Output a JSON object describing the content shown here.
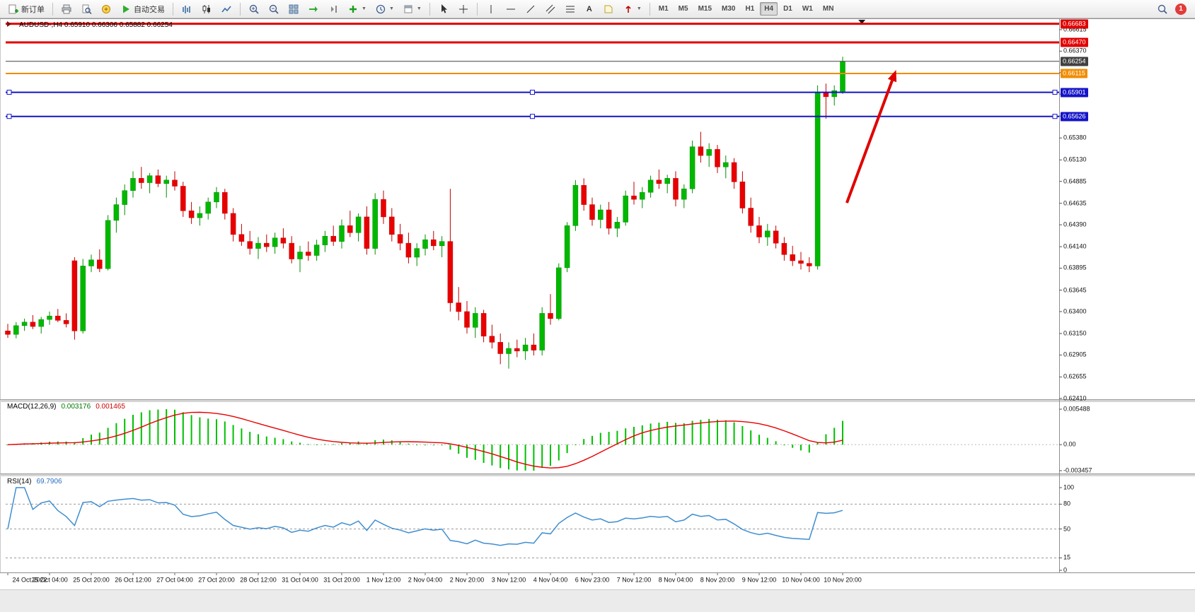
{
  "toolbar": {
    "new_order_label": "新订单",
    "auto_trading_label": "自动交易",
    "timeframes": [
      "M1",
      "M5",
      "M15",
      "M30",
      "H1",
      "H4",
      "D1",
      "W1",
      "MN"
    ],
    "active_timeframe": "H4",
    "notification_count": "1"
  },
  "chart": {
    "title": "AUDUSD-,H4 0.65910 0.66306 0.65882 0.66254"
  },
  "chart_data": {
    "type": "candlestick",
    "symbol": "AUDUSD-",
    "timeframe": "H4",
    "last_bar": {
      "open": "0.65910",
      "high": "0.66306",
      "low": "0.65882",
      "close": "0.66254"
    },
    "y_axis_ticks": [
      "0.66615",
      "0.66370",
      "0.66125",
      "0.65880",
      "0.65630",
      "0.65380",
      "0.65130",
      "0.64885",
      "0.64635",
      "0.64390",
      "0.64140",
      "0.63895",
      "0.63645",
      "0.63400",
      "0.63150",
      "0.62905",
      "0.62655",
      "0.62410"
    ],
    "x_labels": [
      "24 Oct 2022",
      "25 Oct 04:00",
      "25 Oct 20:00",
      "26 Oct 12:00",
      "27 Oct 04:00",
      "27 Oct 20:00",
      "28 Oct 12:00",
      "31 Oct 04:00",
      "31 Oct 20:00",
      "1 Nov 12:00",
      "2 Nov 04:00",
      "2 Nov 20:00",
      "3 Nov 12:00",
      "4 Nov 04:00",
      "6 Nov 23:00",
      "7 Nov 12:00",
      "8 Nov 04:00",
      "8 Nov 20:00",
      "9 Nov 12:00",
      "10 Nov 04:00",
      "10 Nov 20:00"
    ],
    "bars_per_label": 5,
    "candles": [
      [
        0.6318,
        0.6326,
        0.631,
        0.6314
      ],
      [
        0.6314,
        0.6328,
        0.63095,
        0.6324
      ],
      [
        0.6324,
        0.6332,
        0.6318,
        0.6328
      ],
      [
        0.6328,
        0.6336,
        0.632,
        0.6323
      ],
      [
        0.6323,
        0.6334,
        0.6315,
        0.6331
      ],
      [
        0.6331,
        0.634,
        0.6325,
        0.6335
      ],
      [
        0.6335,
        0.6343,
        0.6328,
        0.633
      ],
      [
        0.633,
        0.6338,
        0.6322,
        0.6326
      ],
      [
        0.6398,
        0.6402,
        0.6308,
        0.6318
      ],
      [
        0.6318,
        0.64,
        0.6315,
        0.6392
      ],
      [
        0.6392,
        0.6405,
        0.6385,
        0.6399
      ],
      [
        0.6399,
        0.6411,
        0.6385,
        0.6389
      ],
      [
        0.6389,
        0.645,
        0.6387,
        0.6444
      ],
      [
        0.6444,
        0.647,
        0.643,
        0.6462
      ],
      [
        0.6462,
        0.6485,
        0.645,
        0.6478
      ],
      [
        0.6478,
        0.65,
        0.647,
        0.6492
      ],
      [
        0.6492,
        0.6505,
        0.648,
        0.6487
      ],
      [
        0.6487,
        0.6498,
        0.6475,
        0.6495
      ],
      [
        0.6495,
        0.6502,
        0.6482,
        0.6486
      ],
      [
        0.6486,
        0.6495,
        0.647,
        0.649
      ],
      [
        0.649,
        0.65,
        0.6478,
        0.6483
      ],
      [
        0.6483,
        0.6488,
        0.6448,
        0.6455
      ],
      [
        0.6455,
        0.6465,
        0.644,
        0.6447
      ],
      [
        0.6447,
        0.646,
        0.6438,
        0.6452
      ],
      [
        0.6452,
        0.647,
        0.6445,
        0.6465
      ],
      [
        0.6465,
        0.6482,
        0.6458,
        0.6476
      ],
      [
        0.6476,
        0.648,
        0.6445,
        0.6452
      ],
      [
        0.6452,
        0.6458,
        0.642,
        0.6428
      ],
      [
        0.6428,
        0.644,
        0.6415,
        0.642
      ],
      [
        0.642,
        0.6432,
        0.6405,
        0.6412
      ],
      [
        0.6412,
        0.6425,
        0.64,
        0.6418
      ],
      [
        0.6418,
        0.6428,
        0.6408,
        0.6414
      ],
      [
        0.6414,
        0.643,
        0.6406,
        0.6424
      ],
      [
        0.6424,
        0.6435,
        0.6412,
        0.6418
      ],
      [
        0.6418,
        0.6426,
        0.6395,
        0.64
      ],
      [
        0.64,
        0.6415,
        0.6385,
        0.6408
      ],
      [
        0.6408,
        0.642,
        0.6398,
        0.6404
      ],
      [
        0.6404,
        0.6422,
        0.6398,
        0.6416
      ],
      [
        0.6416,
        0.6432,
        0.6408,
        0.6426
      ],
      [
        0.6426,
        0.6438,
        0.6415,
        0.642
      ],
      [
        0.642,
        0.6445,
        0.6412,
        0.6438
      ],
      [
        0.6438,
        0.6455,
        0.6425,
        0.643
      ],
      [
        0.643,
        0.6452,
        0.642,
        0.6448
      ],
      [
        0.6448,
        0.646,
        0.6405,
        0.6412
      ],
      [
        0.6412,
        0.6475,
        0.6405,
        0.6468
      ],
      [
        0.6468,
        0.6478,
        0.644,
        0.6448
      ],
      [
        0.6448,
        0.6458,
        0.642,
        0.6428
      ],
      [
        0.6428,
        0.644,
        0.641,
        0.6418
      ],
      [
        0.6418,
        0.643,
        0.6395,
        0.6402
      ],
      [
        0.6402,
        0.6418,
        0.6392,
        0.6412
      ],
      [
        0.6412,
        0.6428,
        0.6404,
        0.6422
      ],
      [
        0.6422,
        0.6432,
        0.641,
        0.6415
      ],
      [
        0.6415,
        0.6426,
        0.6402,
        0.642
      ],
      [
        0.642,
        0.648,
        0.634,
        0.635
      ],
      [
        0.635,
        0.6368,
        0.633,
        0.634
      ],
      [
        0.634,
        0.6352,
        0.6315,
        0.6322
      ],
      [
        0.6322,
        0.6345,
        0.631,
        0.6338
      ],
      [
        0.6338,
        0.6342,
        0.6305,
        0.6312
      ],
      [
        0.6312,
        0.6325,
        0.6298,
        0.6305
      ],
      [
        0.6305,
        0.6315,
        0.628,
        0.6292
      ],
      [
        0.6292,
        0.6305,
        0.6275,
        0.6298
      ],
      [
        0.6298,
        0.6308,
        0.6288,
        0.6295
      ],
      [
        0.6295,
        0.631,
        0.6285,
        0.6302
      ],
      [
        0.6302,
        0.6315,
        0.629,
        0.6296
      ],
      [
        0.6296,
        0.6345,
        0.629,
        0.6338
      ],
      [
        0.6338,
        0.636,
        0.6325,
        0.6332
      ],
      [
        0.6332,
        0.6395,
        0.633,
        0.639
      ],
      [
        0.639,
        0.6442,
        0.6385,
        0.6438
      ],
      [
        0.6438,
        0.649,
        0.6432,
        0.6484
      ],
      [
        0.6484,
        0.6492,
        0.6455,
        0.6462
      ],
      [
        0.6462,
        0.647,
        0.6438,
        0.6445
      ],
      [
        0.6445,
        0.6462,
        0.6435,
        0.6456
      ],
      [
        0.6456,
        0.6465,
        0.6428,
        0.6435
      ],
      [
        0.6435,
        0.6448,
        0.6425,
        0.6442
      ],
      [
        0.6442,
        0.6478,
        0.6438,
        0.6472
      ],
      [
        0.6472,
        0.6488,
        0.6462,
        0.6468
      ],
      [
        0.6468,
        0.6482,
        0.6458,
        0.6476
      ],
      [
        0.6476,
        0.6495,
        0.647,
        0.649
      ],
      [
        0.649,
        0.6502,
        0.648,
        0.6486
      ],
      [
        0.6486,
        0.6496,
        0.6475,
        0.6492
      ],
      [
        0.6492,
        0.65,
        0.646,
        0.6468
      ],
      [
        0.6468,
        0.6485,
        0.6458,
        0.648
      ],
      [
        0.648,
        0.6535,
        0.6475,
        0.6528
      ],
      [
        0.6528,
        0.6545,
        0.651,
        0.6518
      ],
      [
        0.6518,
        0.6532,
        0.6505,
        0.6525
      ],
      [
        0.6525,
        0.653,
        0.6498,
        0.6505
      ],
      [
        0.6505,
        0.6518,
        0.6492,
        0.651
      ],
      [
        0.651,
        0.6515,
        0.648,
        0.6488
      ],
      [
        0.6488,
        0.65,
        0.6452,
        0.6458
      ],
      [
        0.6458,
        0.647,
        0.643,
        0.6438
      ],
      [
        0.6438,
        0.6448,
        0.6418,
        0.6425
      ],
      [
        0.6425,
        0.644,
        0.6415,
        0.6432
      ],
      [
        0.6432,
        0.6438,
        0.6412,
        0.6418
      ],
      [
        0.6418,
        0.6425,
        0.6398,
        0.6405
      ],
      [
        0.6405,
        0.6415,
        0.6392,
        0.6398
      ],
      [
        0.6398,
        0.6408,
        0.6388,
        0.6395
      ],
      [
        0.6395,
        0.6402,
        0.6385,
        0.6392
      ],
      [
        0.6392,
        0.6598,
        0.6388,
        0.659
      ],
      [
        0.659,
        0.66,
        0.656,
        0.6585
      ],
      [
        0.6585,
        0.6598,
        0.6575,
        0.6592
      ],
      [
        0.6591,
        0.66306,
        0.65882,
        0.66254
      ]
    ],
    "levels": [
      {
        "price": 0.66683,
        "color": "#e00000",
        "width": 3
      },
      {
        "price": 0.6647,
        "color": "#e00000",
        "width": 3
      },
      {
        "price": 0.66254,
        "color": "#404040",
        "width": 1
      },
      {
        "price": 0.66115,
        "color": "#f08c00",
        "width": 2
      },
      {
        "price": 0.65901,
        "color": "#1414c8",
        "width": 2,
        "handles": true
      },
      {
        "price": 0.65626,
        "color": "#1414c8",
        "width": 2,
        "handles": true
      }
    ],
    "price_badges": [
      {
        "text": "0.66683",
        "color": "#e00000",
        "price": 0.66683
      },
      {
        "text": "0.66470",
        "color": "#e00000",
        "price": 0.6647
      },
      {
        "text": "0.66254",
        "color": "#404040",
        "price": 0.66254
      },
      {
        "text": "0.66115",
        "color": "#f08c00",
        "price": 0.66115
      },
      {
        "text": "0.65901",
        "color": "#1414c8",
        "price": 0.65901
      },
      {
        "text": "0.65626",
        "color": "#1414c8",
        "price": 0.65626
      }
    ],
    "indicators": [
      {
        "type": "MACD",
        "label": "MACD(12,26,9)",
        "params": [
          12,
          26,
          9
        ],
        "values": [
          "0.003176",
          "0.001465"
        ],
        "scale": [
          "0.005488",
          "0.00",
          "-0.003457"
        ]
      },
      {
        "type": "RSI",
        "label": "RSI(14)",
        "params": [
          14
        ],
        "value": "69.7906",
        "levels": [
          80,
          50,
          15
        ],
        "scale_labels": [
          "100",
          "80",
          "50",
          "15",
          "0"
        ]
      }
    ],
    "annotations": [
      {
        "type": "arrow",
        "color": "#e00000",
        "from_bar": 100.5,
        "from_price": 0.6464,
        "to_bar": 106.4,
        "to_price": 0.66156
      }
    ],
    "top_marker_bar": 102.3,
    "colors": {
      "up": "#00b800",
      "down": "#e80000",
      "wick_up": "#009000",
      "wick_down": "#c00000",
      "macd_hist": "#00c000",
      "macd_signal": "#e80000",
      "rsi_line": "#3f8ed0"
    }
  }
}
